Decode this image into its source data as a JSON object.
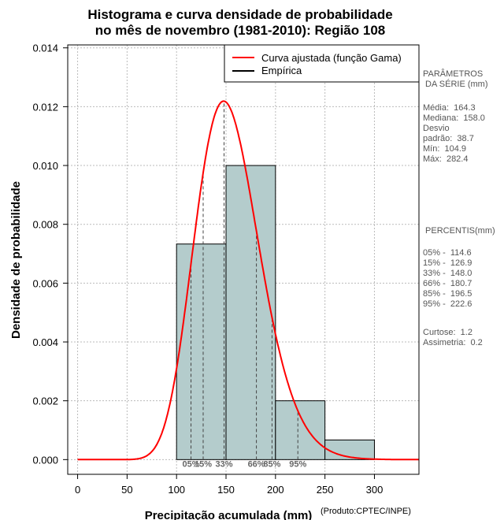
{
  "title_line1": "Histograma e curva densidade de probabilidade",
  "title_line2": "no mês de novembro (1981-2010): Região 108",
  "side_panel": {
    "params_title": "PARÂMETROS\n DA SÉRIE (mm)",
    "stats": "Média:  164.3\nMediana:  158.0\nDesvio\npadrão:  38.7\nMín:  104.9\nMáx:  282.4",
    "percentis_title": " PERCENTIS(mm)",
    "percentis": "05% -  114.6\n15% -  126.9\n33% -  148.0\n66% -  180.7\n85% -  196.5\n95% -  222.6",
    "shape": "Curtose:  1.2\nAssimetria:  0.2"
  },
  "colors": {
    "curve": "#ff0000",
    "bar_fill": "#b4cccc",
    "grid": "#bbbbbb",
    "percentile_label": "#666666"
  },
  "chart_data": {
    "type": "bar",
    "xlabel": "Precipitação acumulada (mm)",
    "ylabel": "Densidade de probabilidade",
    "credit": "(Produto:CPTEC/INPE)",
    "xlim": [
      -10,
      345
    ],
    "ylim": [
      -0.0005,
      0.0141
    ],
    "x_ticks": [
      0,
      50,
      100,
      150,
      200,
      250,
      300
    ],
    "y_ticks": [
      "0.000",
      "0.002",
      "0.004",
      "0.006",
      "0.008",
      "0.010",
      "0.012",
      "0.014"
    ],
    "bins": [
      {
        "x0": 100,
        "x1": 150,
        "density": 0.00733
      },
      {
        "x0": 150,
        "x1": 200,
        "density": 0.01
      },
      {
        "x0": 200,
        "x1": 250,
        "density": 0.002
      },
      {
        "x0": 250,
        "x1": 300,
        "density": 0.000667
      }
    ],
    "gamma_fit": {
      "shape": 21.5,
      "scale": 7.2
    },
    "percentiles": [
      {
        "label": "05%",
        "value": 114.6
      },
      {
        "label": "15%",
        "value": 126.9
      },
      {
        "label": "33%",
        "value": 148.0
      },
      {
        "label": "66%",
        "value": 180.7
      },
      {
        "label": "85%",
        "value": 196.5
      },
      {
        "label": "95%",
        "value": 222.6
      }
    ],
    "legend": {
      "position": "top-right",
      "entries": [
        {
          "label": "Curva ajustada (função Gama)",
          "color": "#ff0000"
        },
        {
          "label": "Empírica",
          "color": "#000000"
        }
      ]
    }
  }
}
